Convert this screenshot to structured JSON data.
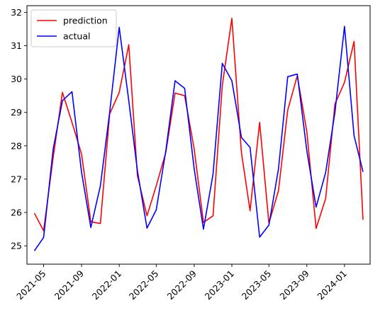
{
  "chart_data": {
    "type": "line",
    "title": "",
    "xlabel": "",
    "ylabel": "",
    "legend_position": "upper-left",
    "grid": false,
    "xlim": [
      "2021-03-08",
      "2024-03-24"
    ],
    "ylim": [
      24.45,
      32.2
    ],
    "xticks": [
      "2021-05-01",
      "2021-09-01",
      "2022-01-01",
      "2022-05-01",
      "2022-09-01",
      "2023-01-01",
      "2023-05-01",
      "2023-09-01",
      "2024-01-01"
    ],
    "xtick_labels": [
      "2021-05",
      "2021-09",
      "2022-01",
      "2022-05",
      "2022-09",
      "2023-01",
      "2023-05",
      "2023-09",
      "2024-01"
    ],
    "yticks": [
      25,
      26,
      27,
      28,
      29,
      30,
      31,
      32
    ],
    "ytick_labels": [
      "25",
      "26",
      "27",
      "28",
      "29",
      "30",
      "31",
      "32"
    ],
    "x": [
      "2021-04-01",
      "2021-05-01",
      "2021-06-01",
      "2021-07-01",
      "2021-08-01",
      "2021-09-01",
      "2021-10-01",
      "2021-11-01",
      "2021-12-01",
      "2022-01-01",
      "2022-02-01",
      "2022-03-01",
      "2022-04-01",
      "2022-05-01",
      "2022-06-01",
      "2022-07-01",
      "2022-08-01",
      "2022-09-01",
      "2022-10-01",
      "2022-11-01",
      "2022-12-01",
      "2023-01-01",
      "2023-02-01",
      "2023-03-01",
      "2023-04-01",
      "2023-05-01",
      "2023-06-01",
      "2023-07-01",
      "2023-08-01",
      "2023-09-01",
      "2023-10-01",
      "2023-11-01",
      "2023-12-01",
      "2024-01-01",
      "2024-02-01",
      "2024-03-01"
    ],
    "series": [
      {
        "name": "prediction",
        "color": "#ff0000",
        "values": [
          25.98,
          25.45,
          27.65,
          29.6,
          28.7,
          27.75,
          25.72,
          25.67,
          28.95,
          29.6,
          31.03,
          27.1,
          25.9,
          26.8,
          27.8,
          29.58,
          29.5,
          27.9,
          25.7,
          25.9,
          29.8,
          31.82,
          27.8,
          26.05,
          28.7,
          25.68,
          26.65,
          29.07,
          30.1,
          28.42,
          25.52,
          26.42,
          29.25,
          29.9,
          31.13,
          25.78
        ]
      },
      {
        "name": "actual",
        "color": "#0000ff",
        "values": [
          24.85,
          25.25,
          27.9,
          29.35,
          29.62,
          27.2,
          25.55,
          26.8,
          29.0,
          31.55,
          29.35,
          27.25,
          25.53,
          26.08,
          27.85,
          29.95,
          29.72,
          27.3,
          25.5,
          27.15,
          30.47,
          29.95,
          28.25,
          27.95,
          25.26,
          25.62,
          27.3,
          30.07,
          30.15,
          27.85,
          26.16,
          27.2,
          29.0,
          31.58,
          28.3,
          27.22
        ]
      }
    ]
  }
}
